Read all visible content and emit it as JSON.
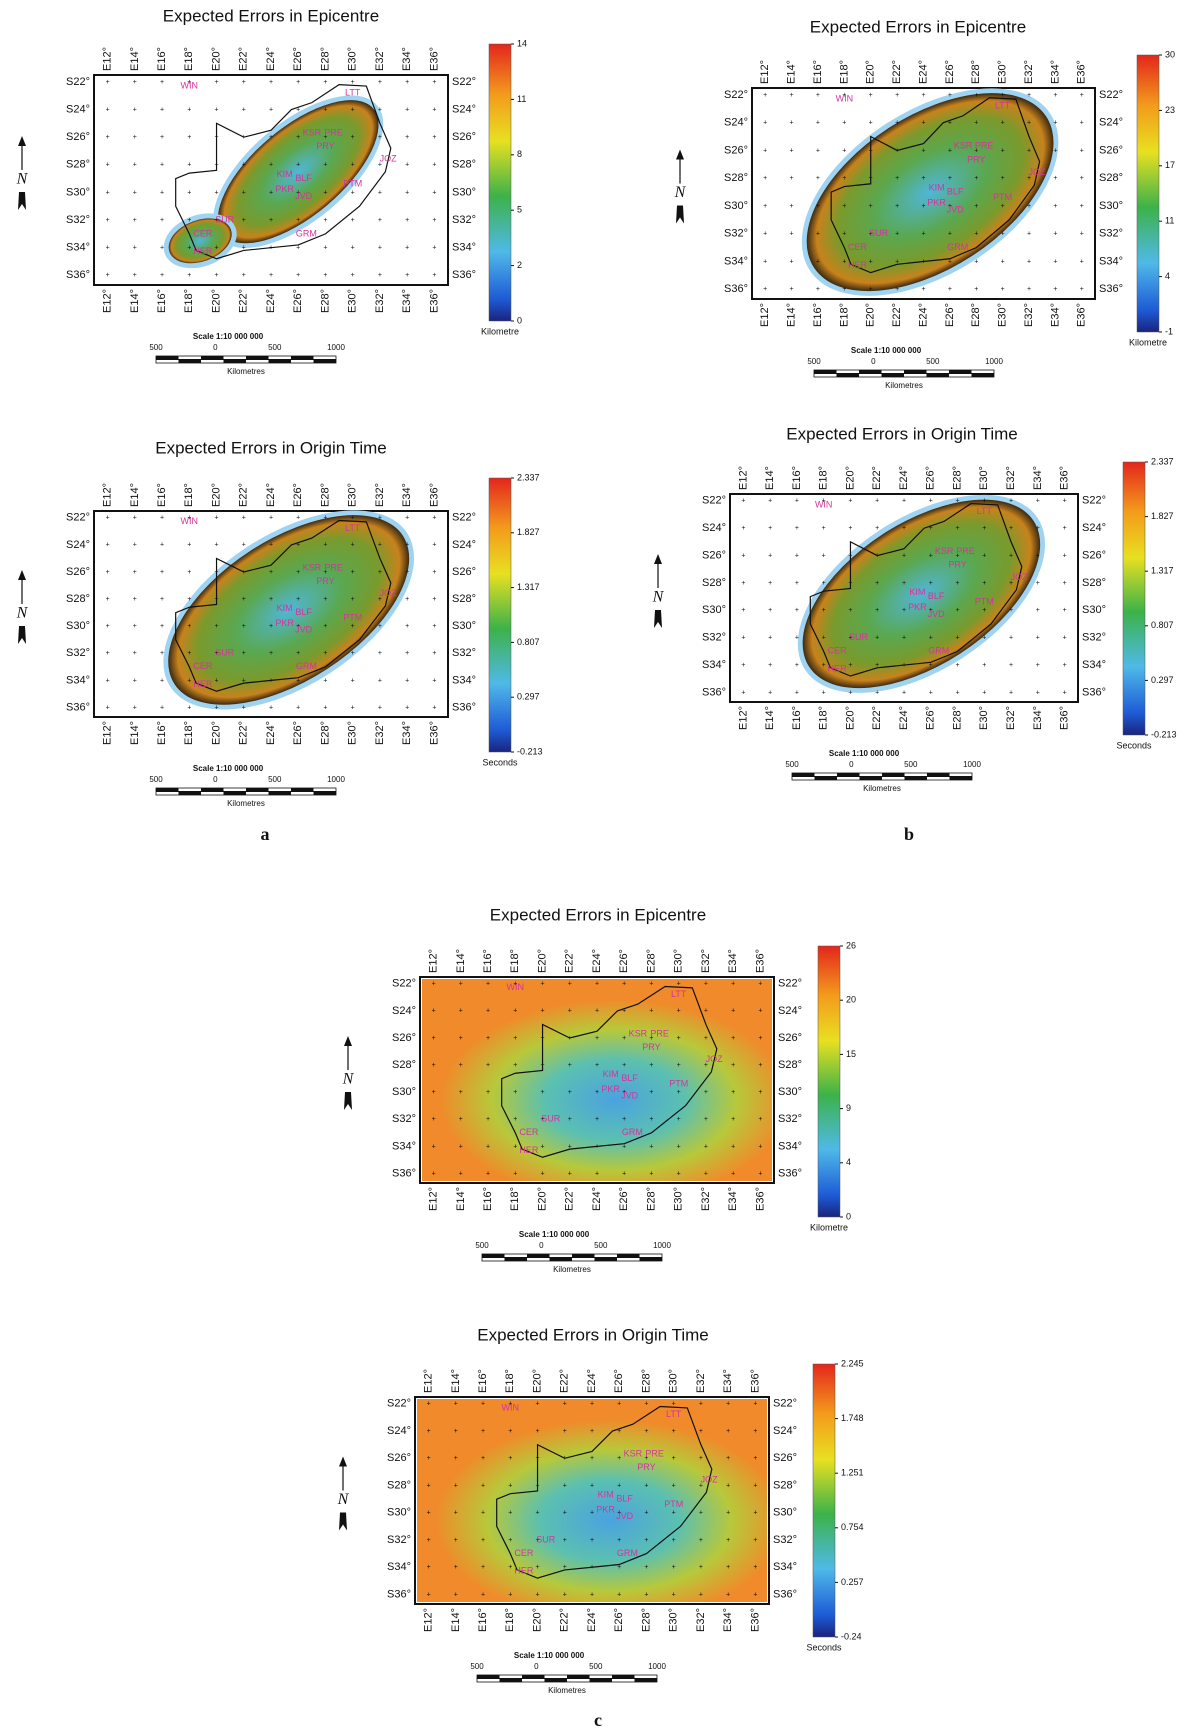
{
  "panels": [
    {
      "title": "Expected Errors in Epicentre",
      "colorbar": {
        "ticks": [
          "14",
          "11",
          "8",
          "5",
          "2",
          "0"
        ],
        "unit": "Kilometre"
      }
    },
    {
      "title": "Expected Errors in Epicentre",
      "colorbar": {
        "ticks": [
          "30",
          "23",
          "17",
          "11",
          "4",
          "-1"
        ],
        "unit": "Kilometre"
      }
    },
    {
      "title": "Expected Errors in Origin Time",
      "colorbar": {
        "ticks": [
          "2.337",
          "1.827",
          "1.317",
          "0.807",
          "0.297",
          "-0.213"
        ],
        "unit": "Seconds"
      }
    },
    {
      "title": "Expected Errors in Origin Time",
      "colorbar": {
        "ticks": [
          "2.337",
          "1.827",
          "1.317",
          "0.807",
          "0.297",
          "-0.213"
        ],
        "unit": "Seconds"
      }
    },
    {
      "title": "Expected Errors in Epicentre",
      "colorbar": {
        "ticks": [
          "26",
          "20",
          "15",
          "9",
          "4",
          "0"
        ],
        "unit": "Kilometre"
      }
    },
    {
      "title": "Expected Errors in Origin Time",
      "colorbar": {
        "ticks": [
          "2.245",
          "1.748",
          "1.251",
          "0.754",
          "0.257",
          "-0.24"
        ],
        "unit": "Seconds"
      }
    }
  ],
  "lon_labels": [
    "E12°",
    "E14°",
    "E16°",
    "E18°",
    "E20°",
    "E22°",
    "E24°",
    "E26°",
    "E28°",
    "E30°",
    "E32°",
    "E34°",
    "E36°"
  ],
  "lat_labels": [
    "S22°",
    "S24°",
    "S26°",
    "S28°",
    "S30°",
    "S32°",
    "S34°",
    "S36°"
  ],
  "north": "N",
  "scale": {
    "title": "Scale 1:10 000 000",
    "ticks": [
      "500",
      "0",
      "500",
      "1000"
    ],
    "unit": "Kilometres"
  },
  "stations": [
    "WIN",
    "LTT",
    "KSR",
    "PRE",
    "PRY",
    "JOZ",
    "KIM",
    "BLF",
    "PKR",
    "JVD",
    "PTM",
    "SUR",
    "CER",
    "HER",
    "GRM"
  ],
  "panel_labels": [
    "a",
    "b",
    "c"
  ]
}
